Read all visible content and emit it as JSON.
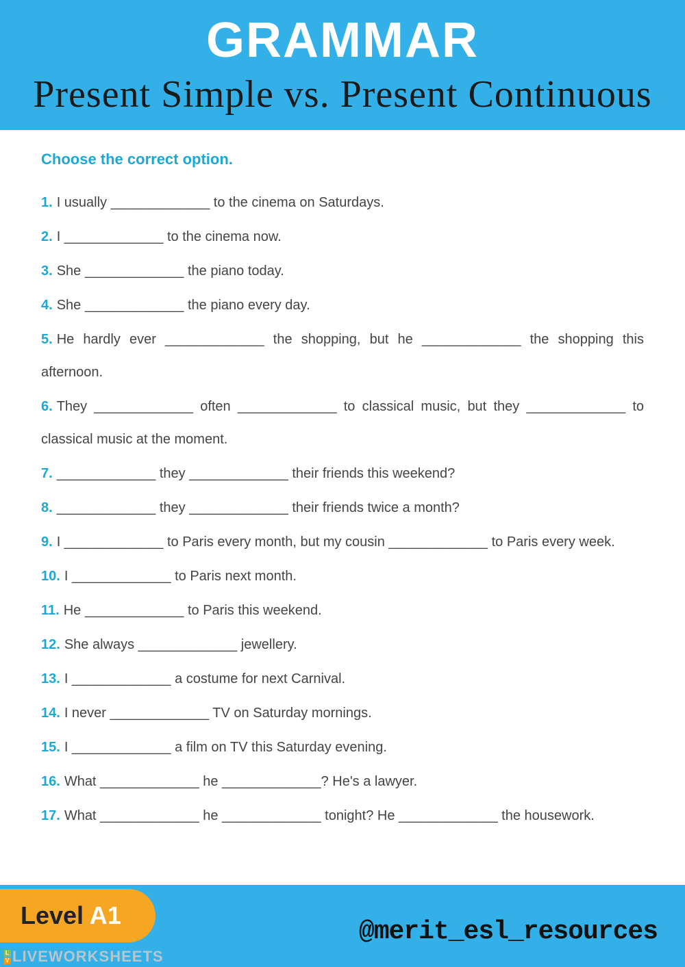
{
  "header": {
    "title": "GRAMMAR",
    "subtitle": "Present Simple vs. Present Continuous"
  },
  "instruction": "Choose the correct option.",
  "items": [
    "I usually _____________ to the cinema on Saturdays.",
    "I _____________ to the cinema now.",
    "She _____________ the piano today.",
    "She _____________ the piano every day.",
    "He hardly ever _____________ the shopping, but he _____________ the shopping this afternoon.",
    "They _____________ often _____________ to classical music, but they _____________ to classical music at the moment.",
    "_____________ they _____________ their friends this weekend?",
    "_____________ they _____________ their friends twice a month?",
    "I _____________ to Paris every month, but my cousin _____________ to Paris every week.",
    "I _____________ to Paris next month.",
    "He _____________ to Paris this weekend.",
    "She always _____________ jewellery.",
    "I _____________ a costume for next Carnival.",
    "I never _____________ TV on Saturday mornings.",
    "I _____________ a film on TV this Saturday evening.",
    "What _____________ he _____________? He's a lawyer.",
    "What _____________ he _____________ tonight? He _____________ the housework."
  ],
  "level": {
    "label": "Level ",
    "value": "A1"
  },
  "handle": "@merit_esl_resources",
  "watermark": "LIVEWORKSHEETS",
  "colors": {
    "header_bg": "#34b0e8",
    "accent": "#1ca8d4",
    "badge": "#f5a623"
  }
}
